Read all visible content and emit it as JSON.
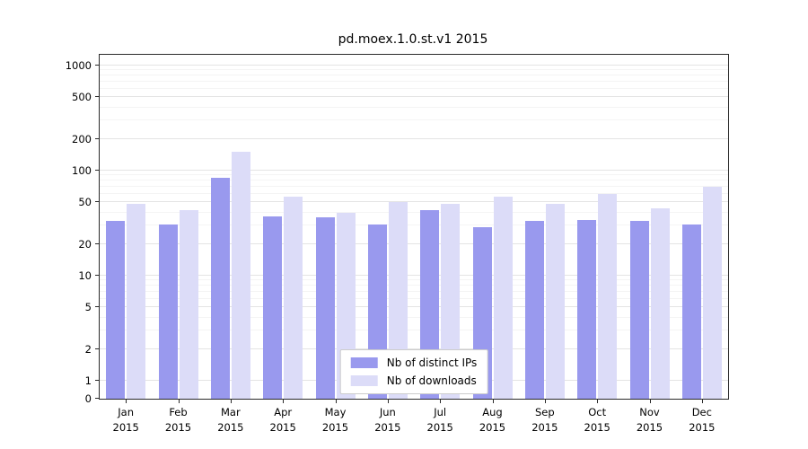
{
  "chart_data": {
    "type": "bar",
    "title": "pd.moex.1.0.st.v1 2015",
    "categories": [
      "Jan\n2015",
      "Feb\n2015",
      "Mar\n2015",
      "Apr\n2015",
      "May\n2015",
      "Jun\n2015",
      "Jul\n2015",
      "Aug\n2015",
      "Sep\n2015",
      "Oct\n2015",
      "Nov\n2015",
      "Dec\n2015"
    ],
    "series": [
      {
        "name": "Nb of distinct IPs",
        "color": "#9999ee",
        "values": [
          33,
          31,
          85,
          37,
          36,
          31,
          42,
          29,
          33,
          34,
          33,
          31
        ]
      },
      {
        "name": "Nb of downloads",
        "color": "#dcdcf8",
        "values": [
          48,
          42,
          150,
          57,
          40,
          50,
          48,
          57,
          48,
          60,
          44,
          70
        ]
      }
    ],
    "yticks": [
      0,
      1,
      2,
      5,
      10,
      20,
      50,
      100,
      200,
      500,
      1000
    ],
    "yscale": "symlog",
    "ylim": [
      0,
      1000
    ],
    "xlabel": "",
    "ylabel": "",
    "grid": true,
    "legend_position": "lower center"
  }
}
